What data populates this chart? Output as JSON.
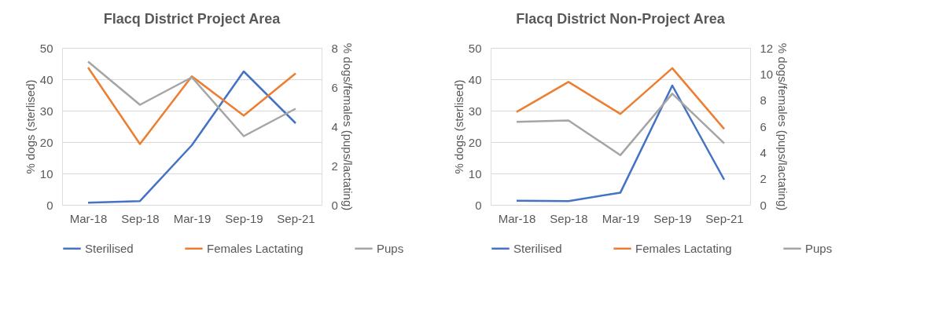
{
  "chart_data": [
    {
      "type": "line",
      "title": "Flacq District Project Area",
      "ylabel": "% dogs (sterlised)",
      "y2label": "% dogs/females (pups/lactating)",
      "categories": [
        "Mar-18",
        "Sep-18",
        "Mar-19",
        "Sep-19",
        "Sep-21"
      ],
      "series": [
        {
          "name": "Sterilised",
          "color": "#4472c4",
          "values": [
            0.7,
            1.2,
            19,
            42.5,
            26
          ]
        },
        {
          "name": "Females Lactating",
          "color": "#ed7d31",
          "axis": "y2",
          "values": [
            7.0,
            3.1,
            6.55,
            4.55,
            6.7
          ]
        },
        {
          "name": "Pups",
          "color": "#a5a5a5",
          "axis": "y2",
          "values": [
            7.3,
            5.1,
            6.5,
            3.5,
            4.9
          ]
        }
      ],
      "ylim": [
        0,
        50
      ],
      "yticks": [
        0,
        10,
        20,
        30,
        40,
        50
      ],
      "y2lim": [
        0,
        8
      ],
      "y2ticks": [
        0,
        2,
        4,
        6,
        8
      ],
      "grid": "y",
      "legend": "bottom"
    },
    {
      "type": "line",
      "title": "Flacq District Non-Project Area",
      "ylabel": "% dogs (sterlised)",
      "y2label": "% dogs/females (pups/lactating)",
      "categories": [
        "Mar-18",
        "Sep-18",
        "Mar-19",
        "Sep-19",
        "Sep-21"
      ],
      "series": [
        {
          "name": "Sterilised",
          "color": "#4472c4",
          "values": [
            1.3,
            1.2,
            3.9,
            38,
            8
          ]
        },
        {
          "name": "Females Lactating",
          "color": "#ed7d31",
          "axis": "y2",
          "values": [
            7.1,
            9.4,
            6.95,
            10.45,
            5.8
          ]
        },
        {
          "name": "Pups",
          "color": "#a5a5a5",
          "axis": "y2",
          "values": [
            6.35,
            6.45,
            3.8,
            8.5,
            4.7
          ]
        }
      ],
      "ylim": [
        0,
        50
      ],
      "yticks": [
        0,
        10,
        20,
        30,
        40,
        50
      ],
      "y2lim": [
        0,
        12
      ],
      "y2ticks": [
        0,
        2,
        4,
        6,
        8,
        10,
        12
      ],
      "grid": "y",
      "legend": "bottom"
    }
  ]
}
